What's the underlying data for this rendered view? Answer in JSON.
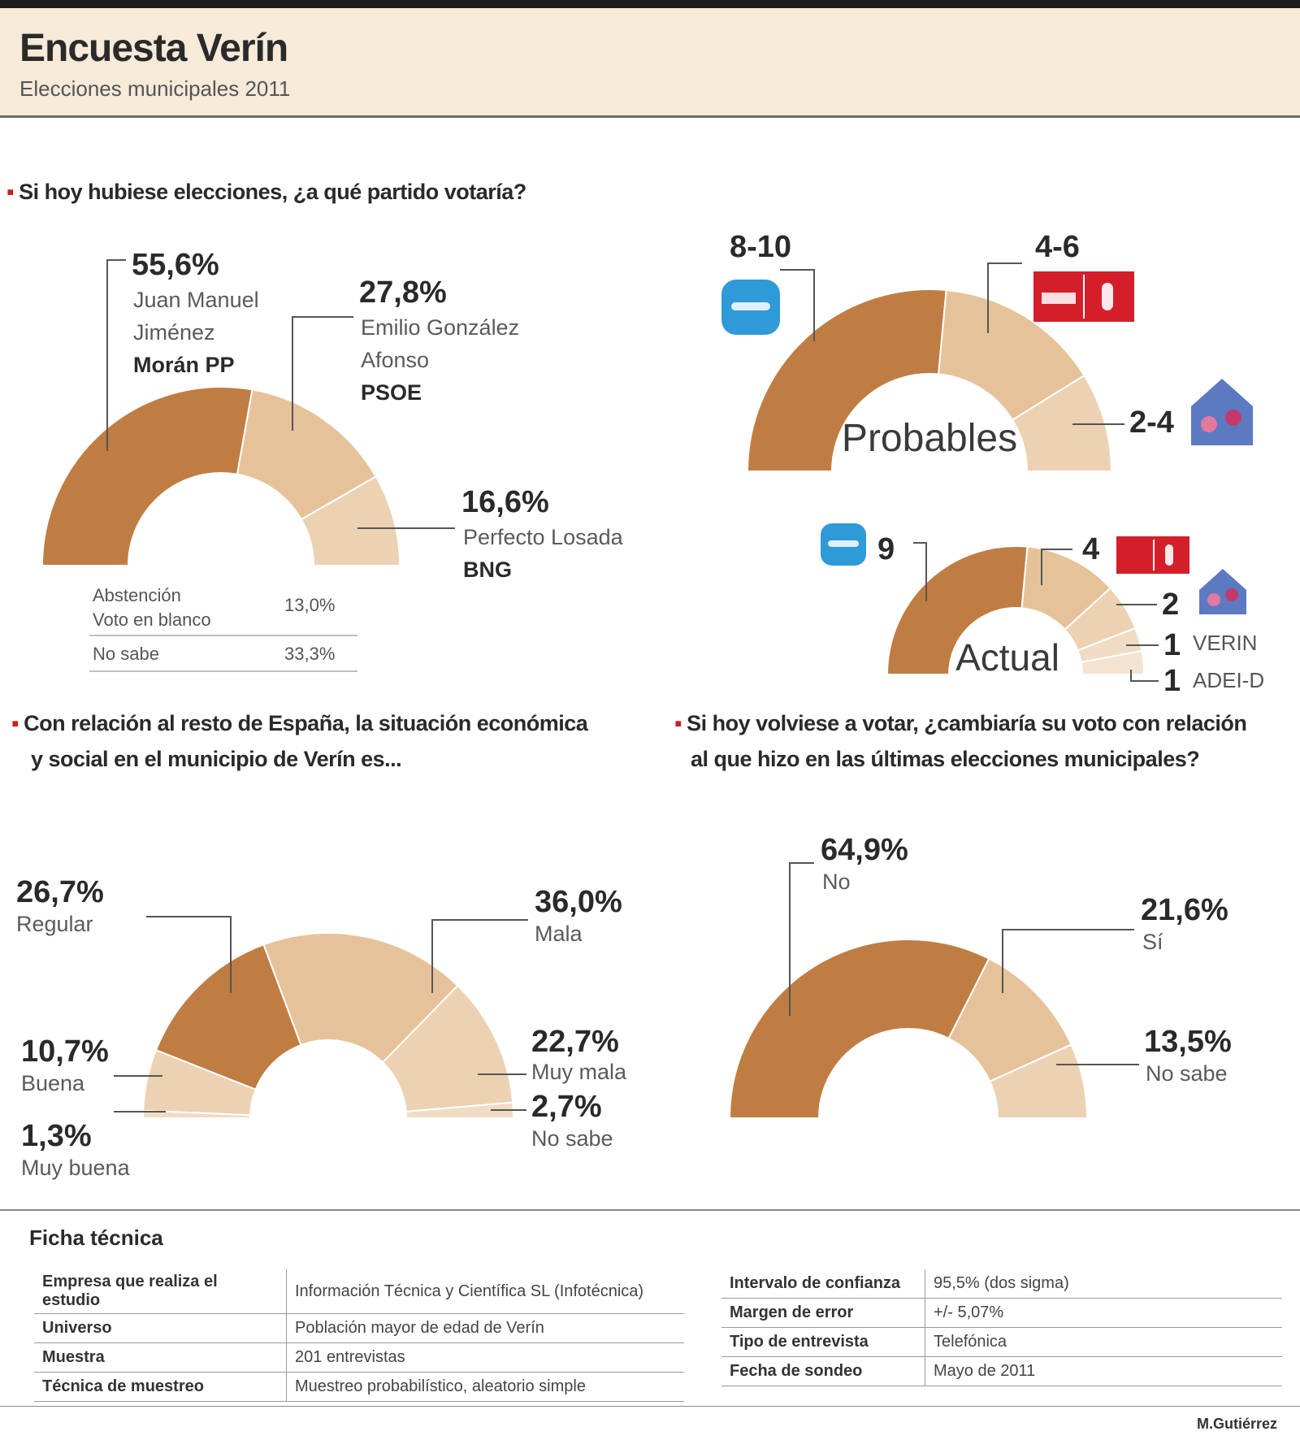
{
  "header": {
    "title": "Encuesta Verín",
    "subtitle": "Elecciones municipales 2011"
  },
  "questions": {
    "q1": "Si hoy hubiese elecciones, ¿a qué partido votaría?",
    "q2_line1": "Con relación al resto de España, la situación económica",
    "q2_line2": "y social en el municipio de Verín es...",
    "q3_line1": "Si hoy volviese a votar, ¿cambiaría su voto con relación",
    "q3_line2": "al que hizo en las últimas elecciones municipales?"
  },
  "colors": {
    "dark": "#c07d43",
    "mid": "#e6c29b",
    "light": "#ecd1b3",
    "lighter": "#f0dcc4",
    "psoe_red": "#d41f2a",
    "pp_blue": "#2f9ad8"
  },
  "chart_data": [
    {
      "id": "vote",
      "type": "pie",
      "title": "Si hoy hubiese elecciones, ¿a qué partido votaría?",
      "shape": "half-donut",
      "slices": [
        {
          "pct_label": "55,6%",
          "value": 55.6,
          "name_lines": [
            "Juan Manuel",
            "Jiménez"
          ],
          "name_bold": "Morán PP",
          "color": "#c07d43"
        },
        {
          "pct_label": "27,8%",
          "value": 27.8,
          "name_lines": [
            "Emilio González",
            "Afonso"
          ],
          "name_bold": "PSOE",
          "color": "#e6c29b"
        },
        {
          "pct_label": "16,6%",
          "value": 16.6,
          "name_lines": [
            "Perfecto Losada"
          ],
          "name_bold": "BNG",
          "color": "#ecd1b3"
        }
      ],
      "notes": [
        {
          "label_lines": [
            "Abstención",
            "Voto en blanco"
          ],
          "value": "13,0%"
        },
        {
          "label_lines": [
            "No sabe"
          ],
          "value": "33,3%"
        }
      ]
    },
    {
      "id": "probables",
      "type": "pie",
      "shape": "half-donut",
      "center_label": "Probables",
      "slices": [
        {
          "label": "8-10",
          "value": 9,
          "party": "PP",
          "color": "#c07d43"
        },
        {
          "label": "4-6",
          "value": 5,
          "party": "PSOE",
          "color": "#e6c29b"
        },
        {
          "label": "2-4",
          "value": 3,
          "party": "BNG",
          "color": "#ecd1b3"
        }
      ]
    },
    {
      "id": "actual",
      "type": "pie",
      "shape": "half-donut",
      "center_label": "Actual",
      "slices": [
        {
          "label": "9",
          "value": 9,
          "party": "PP",
          "color": "#c07d43"
        },
        {
          "label": "4",
          "value": 4,
          "party": "PSOE",
          "color": "#e6c29b"
        },
        {
          "label": "2",
          "value": 2,
          "party": "BNG",
          "color": "#ecd1b3"
        },
        {
          "label": "1",
          "value": 1,
          "party": "VERÍN",
          "text": "VERIN",
          "color": "#f0dcc4"
        },
        {
          "label": "1",
          "value": 1,
          "party": "ADEI-D",
          "text": "ADEI-D",
          "color": "#f3e3d0"
        }
      ]
    },
    {
      "id": "situacion",
      "type": "pie",
      "shape": "half-donut",
      "title": "Con relación al resto de España, la situación económica y social en el municipio de Verín es...",
      "slices": [
        {
          "pct_label": "1,3%",
          "value": 1.3,
          "name": "Muy buena",
          "color": "#f0dcc4"
        },
        {
          "pct_label": "10,7%",
          "value": 10.7,
          "name": "Buena",
          "color": "#ecd1b3"
        },
        {
          "pct_label": "26,7%",
          "value": 26.7,
          "name": "Regular",
          "color": "#c07d43"
        },
        {
          "pct_label": "36,0%",
          "value": 36.0,
          "name": "Mala",
          "color": "#e6c29b"
        },
        {
          "pct_label": "22,7%",
          "value": 22.7,
          "name": "Muy mala",
          "color": "#ecd1b3"
        },
        {
          "pct_label": "2,7%",
          "value": 2.7,
          "name": "No sabe",
          "color": "#f0dcc4"
        }
      ]
    },
    {
      "id": "cambio",
      "type": "pie",
      "shape": "half-donut",
      "title": "Si hoy volviese a votar, ¿cambiaría su voto con relación al que hizo en las últimas elecciones municipales?",
      "slices": [
        {
          "pct_label": "64,9%",
          "value": 64.9,
          "name": "No",
          "color": "#c07d43"
        },
        {
          "pct_label": "21,6%",
          "value": 21.6,
          "name": "Sí",
          "color": "#e6c29b"
        },
        {
          "pct_label": "13,5%",
          "value": 13.5,
          "name": "No sabe",
          "color": "#ecd1b3"
        }
      ]
    }
  ],
  "ficha": {
    "title": "Ficha técnica",
    "left": [
      {
        "k": "Empresa que realiza el estudio",
        "v": "Información Técnica y Científica SL (Infotécnica)"
      },
      {
        "k": "Universo",
        "v": "Población mayor de edad de Verín"
      },
      {
        "k": "Muestra",
        "v": "201 entrevistas"
      },
      {
        "k": "Técnica de muestreo",
        "v": "Muestreo probabilístico, aleatorio simple"
      }
    ],
    "right": [
      {
        "k": "Intervalo de confianza",
        "v": "95,5% (dos sigma)"
      },
      {
        "k": "Margen de error",
        "v": "+/- 5,07%"
      },
      {
        "k": "Tipo de entrevista",
        "v": "Telefónica"
      },
      {
        "k": "Fecha de sondeo",
        "v": "Mayo de 2011"
      }
    ]
  },
  "credit": "M.Gutiérrez"
}
